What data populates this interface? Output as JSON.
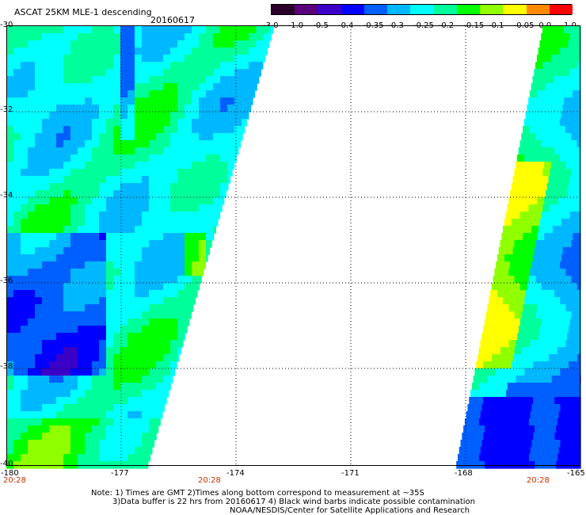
{
  "title": "ASCAT 25KM MLE-1 descending",
  "date": "20160617",
  "y_axis": {
    "labels": [
      "-30",
      "-32",
      "-34",
      "-36",
      "-38",
      "-40"
    ]
  },
  "x_axis": {
    "labels": [
      "-180",
      "-177",
      "-174",
      "-171",
      "-168",
      "-165"
    ]
  },
  "time_labels": [
    "20:28",
    "20:28",
    "20:28"
  ],
  "colorbar": {
    "labels": [
      "-3.0",
      "-1.0",
      "-0.5",
      "-0.4",
      "-0.35",
      "-0.3",
      "-0.25",
      "-0.2",
      "-0.15",
      "-0.1",
      "-0.05",
      "0.0",
      "1.0"
    ],
    "colors": [
      "#2a002a",
      "#5a007a",
      "#3b00c8",
      "#0000ff",
      "#0060ff",
      "#00b8ff",
      "#00ffff",
      "#00ff9a",
      "#00ff00",
      "#90ff00",
      "#ffff00",
      "#ff8a00",
      "#ff0000"
    ]
  },
  "notes": {
    "line1": "Note: 1) Times are GMT 2)Times along bottom correspond to measurement at ~35S",
    "line2": "3)Data buffer is 22 hrs from 20160617 4) Black wind barbs indicate possible contamination",
    "line3": "NOAA/NESDIS/Center for Satellite Applications and Research"
  }
}
